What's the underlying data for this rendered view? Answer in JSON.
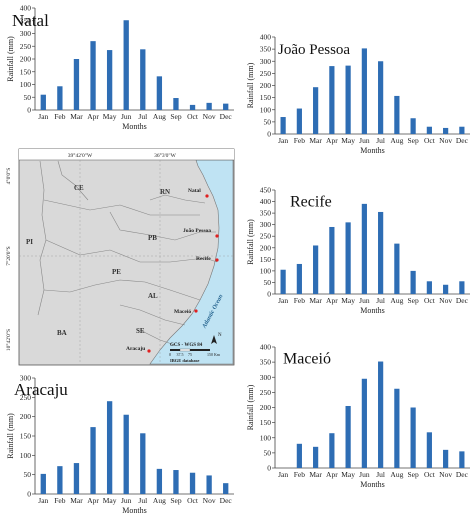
{
  "months": [
    "Jan",
    "Feb",
    "Mar",
    "Apr",
    "May",
    "Jun",
    "Jul",
    "Aug",
    "Sep",
    "Oct",
    "Nov",
    "Dec"
  ],
  "bar_color": "#2E6DB4",
  "chart_data": [
    {
      "type": "bar",
      "title": "Natal",
      "xlabel": "Months",
      "ylabel": "Rainfall (mm)",
      "ylim": [
        0,
        400
      ],
      "yticks": [
        0,
        50,
        100,
        150,
        200,
        250,
        300,
        350,
        400
      ],
      "categories": [
        "Jan",
        "Feb",
        "Mar",
        "Apr",
        "May",
        "Jun",
        "Jul",
        "Aug",
        "Sep",
        "Oct",
        "Nov",
        "Dec"
      ],
      "values": [
        60,
        93,
        200,
        270,
        235,
        352,
        238,
        132,
        47,
        20,
        28,
        25
      ]
    },
    {
      "type": "bar",
      "title": "João Pessoa",
      "xlabel": "Months",
      "ylabel": "Rainfall (mm)",
      "ylim": [
        0,
        400
      ],
      "yticks": [
        0,
        50,
        100,
        150,
        200,
        250,
        300,
        350,
        400
      ],
      "categories": [
        "Jan",
        "Feb",
        "Mar",
        "Apr",
        "May",
        "Jun",
        "Jul",
        "Aug",
        "Sep",
        "Oct",
        "Nov",
        "Dec"
      ],
      "values": [
        70,
        105,
        193,
        280,
        282,
        353,
        300,
        157,
        65,
        30,
        25,
        30
      ]
    },
    {
      "type": "bar",
      "title": "Recife",
      "xlabel": "Months",
      "ylabel": "Rainfall (mm)",
      "ylim": [
        0,
        450
      ],
      "yticks": [
        0,
        50,
        100,
        150,
        200,
        250,
        300,
        350,
        400,
        450
      ],
      "categories": [
        "Jan",
        "Feb",
        "Mar",
        "Apr",
        "May",
        "Jun",
        "Jul",
        "Aug",
        "Sep",
        "Oct",
        "Nov",
        "Dec"
      ],
      "values": [
        105,
        130,
        210,
        290,
        310,
        390,
        355,
        218,
        100,
        55,
        40,
        55
      ]
    },
    {
      "type": "bar",
      "title": "Aracaju",
      "xlabel": "Months",
      "ylabel": "Rainfall (mm)",
      "ylim": [
        0,
        300
      ],
      "yticks": [
        0,
        50,
        100,
        150,
        200,
        250,
        300
      ],
      "categories": [
        "Jan",
        "Feb",
        "Mar",
        "Apr",
        "May",
        "Jun",
        "Jul",
        "Aug",
        "Sep",
        "Oct",
        "Nov",
        "Dec"
      ],
      "values": [
        52,
        72,
        80,
        173,
        240,
        205,
        157,
        65,
        62,
        55,
        48,
        28
      ]
    },
    {
      "type": "bar",
      "title": "Maceió",
      "xlabel": "Months",
      "ylabel": "Rainfall (mm)",
      "ylim": [
        0,
        400
      ],
      "yticks": [
        0,
        50,
        100,
        150,
        200,
        250,
        300,
        350,
        400
      ],
      "categories": [
        "Jan",
        "Feb",
        "Mar",
        "Apr",
        "May",
        "Jun",
        "Jul",
        "Aug",
        "Sep",
        "Oct",
        "Nov",
        "Dec"
      ],
      "values": [
        0,
        80,
        70,
        115,
        205,
        295,
        352,
        262,
        200,
        118,
        60,
        55
      ]
    }
  ],
  "map": {
    "lon_labels": [
      "39°42'0\"W",
      "36°3'0\"W"
    ],
    "lat_labels": [
      "4°0'0\"S",
      "7°20'0\"S",
      "10°42'0\"S"
    ],
    "states": [
      "CE",
      "RN",
      "PB",
      "PI",
      "PE",
      "AL",
      "SE",
      "BA"
    ],
    "cities": [
      "Natal",
      "João Pessoa",
      "Recife",
      "Maceió",
      "Aracaju"
    ],
    "ocean_label": "Atlantic Ocean",
    "north_label": "N",
    "datum": "GCS - WGS 84",
    "scale_ticks": [
      "0",
      "37.5",
      "75",
      "150"
    ],
    "scale_unit": "Km",
    "source": "IBGE database",
    "colors": {
      "land": "#d9d9d9",
      "ocean": "#bfe3f3",
      "border": "#888888",
      "city": "#e02020"
    }
  }
}
